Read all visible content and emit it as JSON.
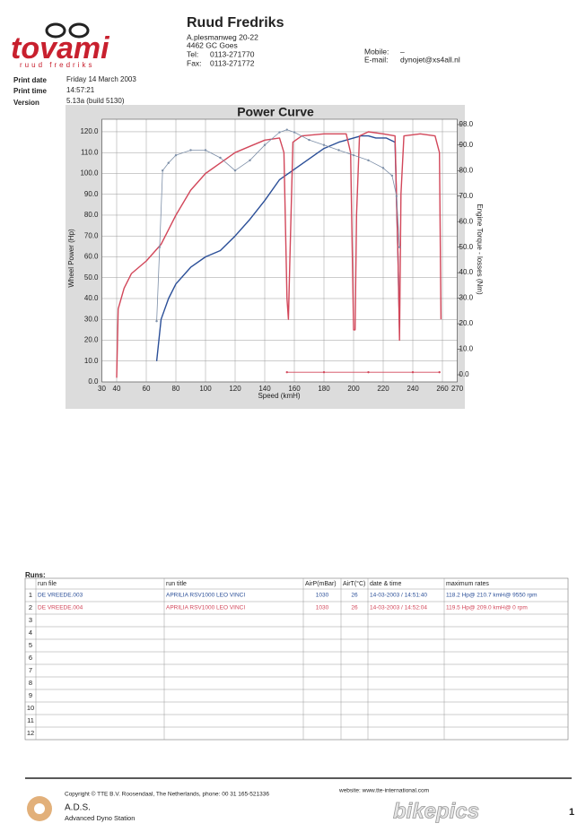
{
  "header": {
    "logo": "tovami",
    "logo_sub": "ruud fredriks",
    "company": "Ruud Fredriks",
    "address1": "A.plesmanweg 20-22",
    "address2": "4462 GC Goes",
    "tel_label": "Tel:",
    "tel": "0113-271770",
    "fax_label": "Fax:",
    "fax": "0113-271772",
    "mobile_label": "Mobile:",
    "mobile": "–",
    "email_label": "E-mail:",
    "email": "dynojet@xs4all.nl"
  },
  "info": {
    "print_date_label": "Print date",
    "print_date": "Friday 14 March 2003",
    "print_time_label": "Print time",
    "print_time": "14:57:21",
    "version_label": "Version",
    "version": "5.13a (build 5130)"
  },
  "chart_data": {
    "type": "line",
    "title": "Power Curve",
    "xlabel": "Speed (kmH)",
    "ylabel": "Wheel Power (Hp)",
    "y2label": "Engine Torque - losses (Nm)",
    "xlim": [
      30,
      270
    ],
    "xticks": [
      30,
      40,
      60,
      80,
      100,
      120,
      140,
      160,
      180,
      200,
      220,
      240,
      260,
      270
    ],
    "ylim": [
      0,
      126
    ],
    "yticks": [
      {
        "value": 0,
        "label": "0.0"
      },
      {
        "value": 10,
        "label": "10.0"
      },
      {
        "value": 20,
        "label": "20.0"
      },
      {
        "value": 30,
        "label": "30.0"
      },
      {
        "value": 40,
        "label": "40.0"
      },
      {
        "value": 50,
        "label": "50.0"
      },
      {
        "value": 60,
        "label": "60.0"
      },
      {
        "value": 70,
        "label": "70.0"
      },
      {
        "value": 80,
        "label": "80.0"
      },
      {
        "value": 90,
        "label": "90.0"
      },
      {
        "value": 100,
        "label": "100.0"
      },
      {
        "value": 110,
        "label": "110.0"
      },
      {
        "value": 120,
        "label": "120.0"
      }
    ],
    "y2lim": [
      -2.8,
      100.1
    ],
    "y2ticks": [
      {
        "value": 0,
        "label": "0.0"
      },
      {
        "value": 10,
        "label": "10.0"
      },
      {
        "value": 20,
        "label": "20.0"
      },
      {
        "value": 30,
        "label": "30.0"
      },
      {
        "value": 40,
        "label": "40.0"
      },
      {
        "value": 50,
        "label": "50.0"
      },
      {
        "value": 60,
        "label": "60.0"
      },
      {
        "value": 70,
        "label": "70.0"
      },
      {
        "value": 80,
        "label": "80.0"
      },
      {
        "value": 90,
        "label": "90.0"
      },
      {
        "value": 98,
        "label": "98.0"
      }
    ],
    "grid": true,
    "series": [
      {
        "color": "#2b4f98",
        "x": [
          67,
          70,
          75,
          80,
          90,
          100,
          110,
          120,
          130,
          140,
          150,
          160,
          170,
          180,
          190,
          200,
          205,
          210,
          215,
          222,
          228,
          230,
          231
        ],
        "values": [
          10,
          30,
          40,
          47,
          55,
          60,
          63,
          70,
          78,
          87,
          97,
          102,
          107,
          112,
          115,
          117,
          118,
          118,
          117,
          117,
          115,
          60,
          25
        ]
      },
      {
        "color": "#d2475a",
        "x": [
          40,
          41,
          45,
          50,
          60,
          70,
          80,
          90,
          100,
          110,
          120,
          130,
          140,
          150,
          153,
          155,
          156,
          157,
          159,
          165,
          180,
          195,
          198,
          200,
          201,
          202,
          204,
          210,
          220,
          228,
          230,
          231,
          232,
          234,
          245,
          255,
          258,
          259
        ],
        "values": [
          2,
          35,
          45,
          52,
          58,
          66,
          80,
          92,
          100,
          105,
          110,
          113,
          116,
          117,
          110,
          40,
          30,
          60,
          115,
          118,
          119,
          119,
          110,
          25,
          25,
          80,
          118,
          120,
          119,
          118,
          60,
          20,
          90,
          118,
          119,
          118,
          110,
          30
        ]
      },
      {
        "color": "#7d8fa8",
        "axis": "y2",
        "markers": true,
        "x": [
          67,
          69,
          71,
          75,
          80,
          90,
          100,
          110,
          120,
          130,
          140,
          150,
          155,
          160,
          170,
          180,
          190,
          200,
          210,
          220,
          226,
          229,
          231
        ],
        "values": [
          21,
          50,
          80,
          83,
          86,
          88,
          88,
          85,
          80,
          84,
          90,
          95,
          96,
          95,
          92,
          90,
          88,
          86,
          84,
          81,
          78,
          70,
          50
        ]
      },
      {
        "color": "#d2475a",
        "axis": "y2",
        "markers": true,
        "x": [
          155,
          180,
          210,
          240,
          258
        ],
        "values": [
          1,
          1,
          1,
          1,
          1
        ]
      }
    ]
  },
  "runs": {
    "title": "Runs:",
    "columns": [
      "run file",
      "run title",
      "AirP(mBar)",
      "AirT(°C)",
      "date & time",
      "maximum rates"
    ],
    "rows": [
      {
        "no": 1,
        "file": "DE VREEDE.003",
        "title": "APRILIA RSV1000 LEO VINCI",
        "airp": 1030,
        "airt": 26,
        "datetime": "14-03-2003 / 14:51:40",
        "max": "118.2 Hp@ 210.7 kmH@ 9550 rpm"
      },
      {
        "no": 2,
        "file": "DE VREEDE.004",
        "title": "APRILIA RSV1000 LEO VINCI",
        "airp": 1030,
        "airt": 26,
        "datetime": "14-03-2003 / 14:52:04",
        "max": "119.5 Hp@ 209.0 kmH@ 0 rpm"
      },
      {
        "no": 3
      },
      {
        "no": 4
      },
      {
        "no": 5
      },
      {
        "no": 6
      },
      {
        "no": 7
      },
      {
        "no": 8
      },
      {
        "no": 9
      },
      {
        "no": 10
      },
      {
        "no": 11
      },
      {
        "no": 12
      }
    ]
  },
  "footer": {
    "copyright": "Copyright © TTE B.V. Roosendaal, The Netherlands, phone: 00 31 165-521336",
    "website": "website: www.tte-international.com",
    "brand": "A.D.S.",
    "brand_sub": "Advanced Dyno Station",
    "watermark": "bikepics",
    "page": "1"
  }
}
